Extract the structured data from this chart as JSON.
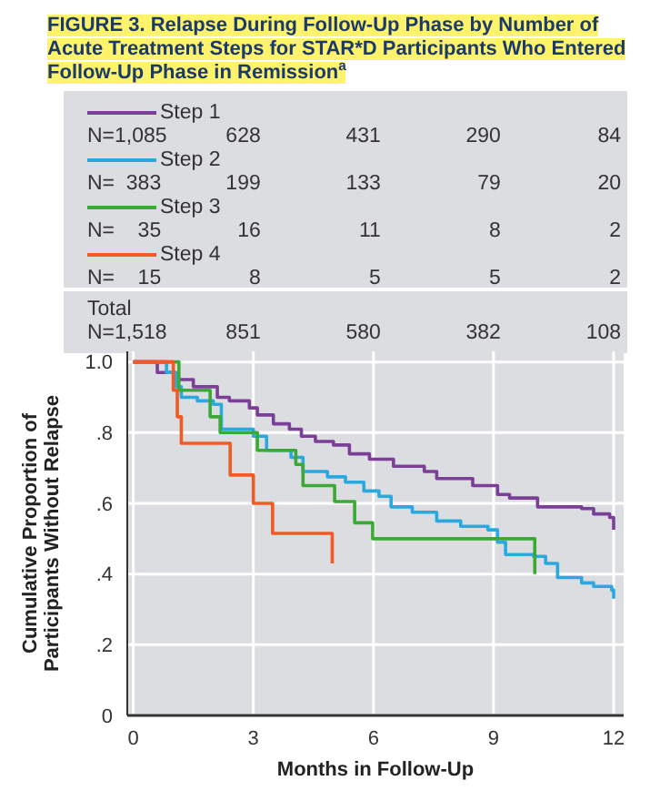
{
  "chart_data": {
    "type": "step",
    "title": "FIGURE 3. Relapse During Follow-Up Phase by Number of Acute Treatment Steps for STAR*D Participants Who Entered Follow-Up Phase in Remission$^{a}$",
    "xlabel": "Months in Follow-Up",
    "ylabel": "Cumulative Proportion of Participants Without Relapse",
    "xlim": [
      -0.15,
      12.25
    ],
    "xticks": [
      0,
      3,
      6,
      9,
      12
    ],
    "ylim": [
      0,
      1.03
    ],
    "yticks": [
      0,
      {
        "value": 0.2,
        "label": ".2"
      },
      {
        "value": 0.4,
        "label": ".4"
      },
      {
        "value": 0.6,
        "label": ".6"
      },
      {
        "value": 0.8,
        "label": ".8"
      },
      {
        "value": 1,
        "label": "1.0"
      }
    ],
    "grid": true,
    "legend": "top",
    "marker": "none",
    "line_style": "solid",
    "series": [
      {
        "name": "Step 1",
        "color": "#7b3f98",
        "x": [
          0,
          0.6,
          1.06,
          1.5,
          2.1,
          2.4,
          2.9,
          3.1,
          3.5,
          3.9,
          4.2,
          4.55,
          5.0,
          5.4,
          5.9,
          6.5,
          7.27,
          7.58,
          8.48,
          9.1,
          9.4,
          10.1,
          11.2,
          11.5,
          11.9,
          12
        ],
        "values": [
          1,
          0.97,
          0.95,
          0.93,
          0.9,
          0.89,
          0.87,
          0.85,
          0.825,
          0.81,
          0.79,
          0.775,
          0.765,
          0.74,
          0.725,
          0.705,
          0.69,
          0.67,
          0.65,
          0.625,
          0.615,
          0.59,
          0.585,
          0.57,
          0.56,
          0.525
        ]
      },
      {
        "name": "Step 2",
        "color": "#29a9e0",
        "x": [
          0,
          0.83,
          1.06,
          1.2,
          1.6,
          2.0,
          2.2,
          3.0,
          3.33,
          3.94,
          4.24,
          4.85,
          5.3,
          5.76,
          6.14,
          6.44,
          6.97,
          7.58,
          8.18,
          8.86,
          9.1,
          9.3,
          10.0,
          10.3,
          10.6,
          11.2,
          11.5,
          11.95,
          12
        ],
        "values": [
          1,
          0.97,
          0.93,
          0.9,
          0.89,
          0.88,
          0.81,
          0.79,
          0.75,
          0.73,
          0.69,
          0.675,
          0.66,
          0.635,
          0.62,
          0.59,
          0.575,
          0.55,
          0.535,
          0.525,
          0.49,
          0.455,
          0.45,
          0.43,
          0.39,
          0.375,
          0.365,
          0.355,
          0.33
        ]
      },
      {
        "name": "Step 3",
        "color": "#3aa935",
        "x": [
          0,
          1.14,
          1.92,
          2.17,
          3.1,
          4.06,
          4.24,
          5.03,
          5.53,
          5.98,
          10.03
        ],
        "values": [
          1,
          0.92,
          0.845,
          0.8,
          0.75,
          0.71,
          0.65,
          0.605,
          0.545,
          0.5,
          0.4
        ]
      },
      {
        "name": "Step 4",
        "color": "#f15a24",
        "x": [
          0,
          1.0,
          1.1,
          1.2,
          2.42,
          3.0,
          3.48,
          4.97
        ],
        "values": [
          1,
          0.92,
          0.845,
          0.77,
          0.68,
          0.6,
          0.515,
          0.43
        ]
      }
    ],
    "annotations": [
      "N=1,085",
      "628",
      "431",
      "290",
      "84",
      "N=  383",
      "199",
      "133",
      "79",
      "20",
      "N=    35",
      "16",
      "11",
      "8",
      "2",
      "N=    15",
      "8",
      "5",
      "5",
      "2",
      "Total\nN=1,518",
      "851",
      "580",
      "382",
      "108"
    ]
  }
}
